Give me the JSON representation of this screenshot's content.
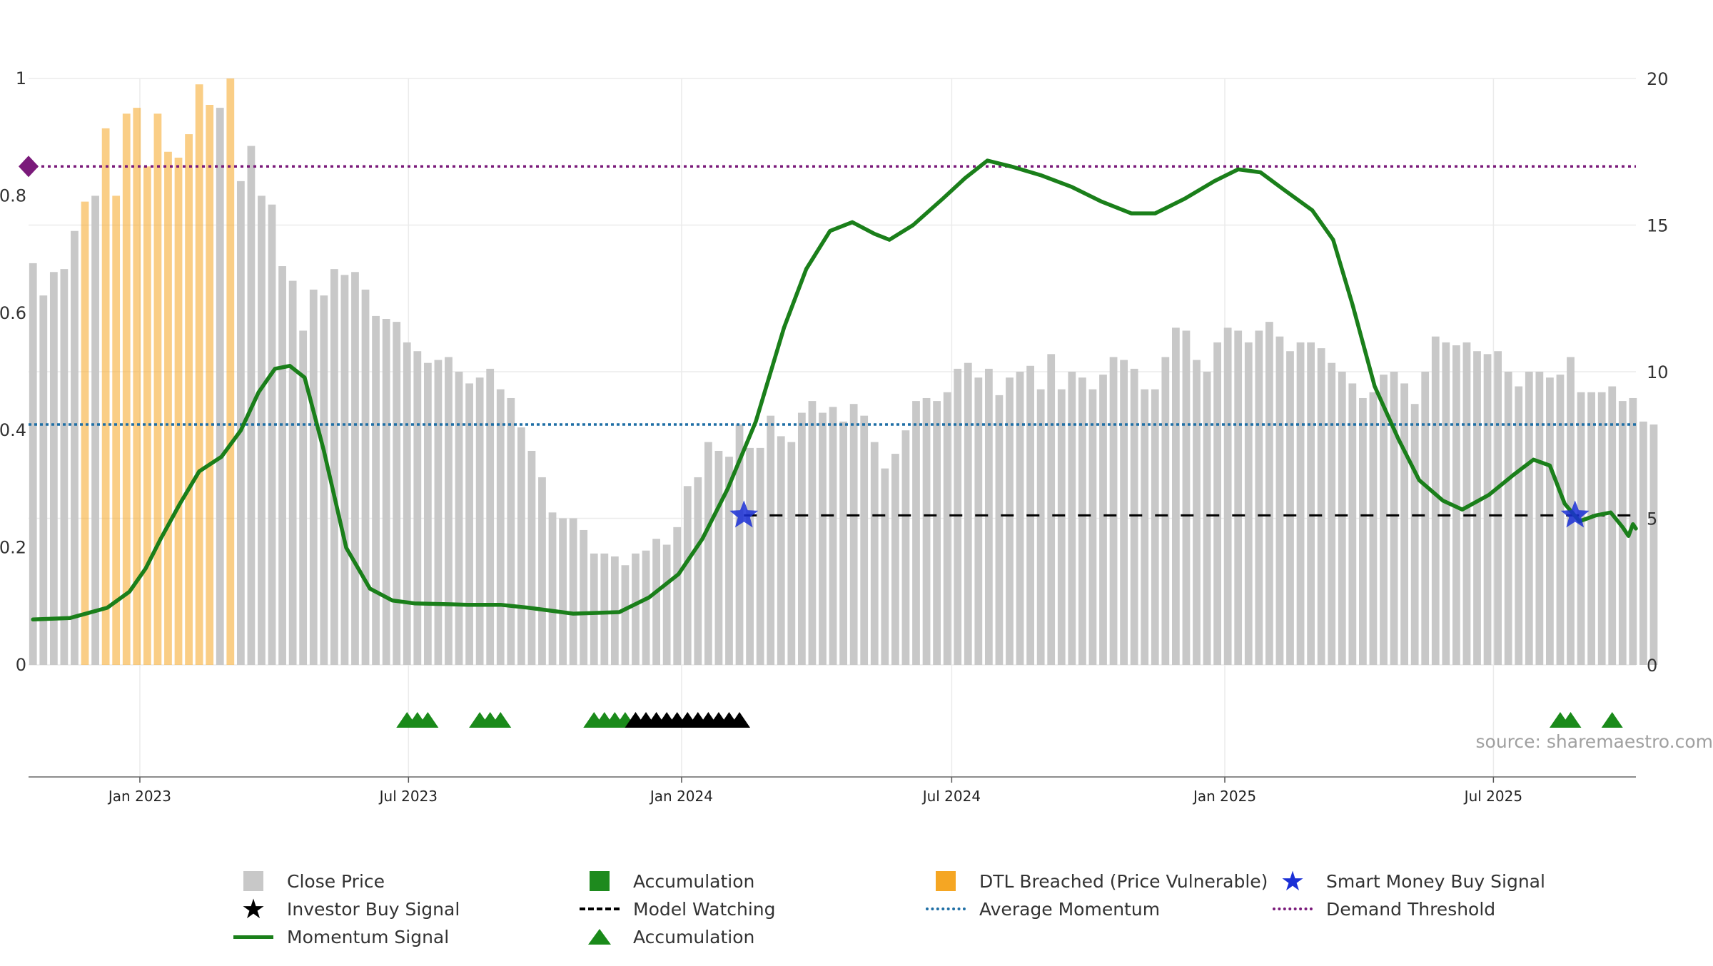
{
  "chart_data": {
    "type": "bar",
    "left_axis": {
      "ticks": [
        "0",
        "0.2",
        "0.4",
        "0.6",
        "0.8",
        "1"
      ],
      "ylim": [
        0,
        1
      ]
    },
    "right_axis": {
      "ticks": [
        "0",
        "5",
        "10",
        "15",
        "20"
      ],
      "ylim": [
        0,
        20
      ]
    },
    "x_ticks": [
      "Jan 2023",
      "Jul 2023",
      "Jan 2024",
      "Jul 2024",
      "Jan 2025",
      "Jul 2025"
    ],
    "x_tick_dates": [
      "2023-01-01",
      "2023-07-01",
      "2024-01-01",
      "2024-07-01",
      "2025-01-01",
      "2025-07-01"
    ],
    "x_range": [
      "2022-10-18",
      "2025-10-05"
    ],
    "source_text": "source: sharemaestro.com",
    "series": [
      {
        "name": "Close Price",
        "color": "#c8c8c8",
        "start_date": "2022-10-21",
        "interval_days": 7,
        "values": [
          13.7,
          12.6,
          13.4,
          13.5,
          14.8,
          15.8,
          16.0,
          18.3,
          16.0,
          18.8,
          19.0,
          17.0,
          18.8,
          17.5,
          17.3,
          18.1,
          19.8,
          19.1,
          19.0,
          20.0,
          16.5,
          17.7,
          16.0,
          15.7,
          13.6,
          13.1,
          11.4,
          12.8,
          12.6,
          13.5,
          13.3,
          13.4,
          12.8,
          11.9,
          11.8,
          11.7,
          11.0,
          10.7,
          10.3,
          10.4,
          10.5,
          10.0,
          9.6,
          9.8,
          10.1,
          9.4,
          9.1,
          8.1,
          7.3,
          6.4,
          5.2,
          5.0,
          5.0,
          4.6,
          3.8,
          3.8,
          3.7,
          3.4,
          3.8,
          3.9,
          4.3,
          4.1,
          4.7,
          6.1,
          6.4,
          7.6,
          7.3,
          7.1,
          8.2,
          7.4,
          7.4,
          8.5,
          7.8,
          7.6,
          8.6,
          9.0,
          8.6,
          8.8,
          8.3,
          8.9,
          8.5,
          7.6,
          6.7,
          7.2,
          8.0,
          9.0,
          9.1,
          9.0,
          9.3,
          10.1,
          10.3,
          9.8,
          10.1,
          9.2,
          9.8,
          10.0,
          10.2,
          9.4,
          10.6,
          9.4,
          10.0,
          9.8,
          9.4,
          9.9,
          10.5,
          10.4,
          10.1,
          9.4,
          9.4,
          10.5,
          11.5,
          11.4,
          10.4,
          10.0,
          11.0,
          11.5,
          11.4,
          11.0,
          11.4,
          11.7,
          11.2,
          10.7,
          11.0,
          11.0,
          10.8,
          10.3,
          10.0,
          9.6,
          9.1,
          9.3,
          9.9,
          10.0,
          9.6,
          8.9,
          10.0,
          11.2,
          11.0,
          10.9,
          11.0,
          10.7,
          10.6,
          10.7,
          10.0,
          9.5,
          10.0,
          10.0,
          9.8,
          9.9,
          10.5,
          9.3,
          9.3,
          9.3,
          9.5,
          9.0,
          9.1,
          8.3,
          8.2
        ]
      },
      {
        "name": "Momentum Signal",
        "color": "#1a7f1a",
        "points": [
          [
            "2022-10-21",
            1.55
          ],
          [
            "2022-11-15",
            1.6
          ],
          [
            "2022-12-10",
            1.95
          ],
          [
            "2022-12-25",
            2.5
          ],
          [
            "2023-01-05",
            3.3
          ],
          [
            "2023-01-15",
            4.3
          ],
          [
            "2023-01-28",
            5.5
          ],
          [
            "2023-02-10",
            6.6
          ],
          [
            "2023-02-25",
            7.1
          ],
          [
            "2023-03-10",
            8.0
          ],
          [
            "2023-03-22",
            9.3
          ],
          [
            "2023-04-02",
            10.1
          ],
          [
            "2023-04-12",
            10.2
          ],
          [
            "2023-04-22",
            9.8
          ],
          [
            "2023-05-05",
            7.3
          ],
          [
            "2023-05-20",
            4.0
          ],
          [
            "2023-06-05",
            2.6
          ],
          [
            "2023-06-20",
            2.2
          ],
          [
            "2023-07-05",
            2.1
          ],
          [
            "2023-08-10",
            2.05
          ],
          [
            "2023-09-01",
            2.05
          ],
          [
            "2023-09-20",
            1.95
          ],
          [
            "2023-10-20",
            1.75
          ],
          [
            "2023-11-20",
            1.8
          ],
          [
            "2023-12-10",
            2.3
          ],
          [
            "2023-12-30",
            3.1
          ],
          [
            "2024-01-15",
            4.3
          ],
          [
            "2024-02-01",
            6.0
          ],
          [
            "2024-02-20",
            8.3
          ],
          [
            "2024-03-10",
            11.5
          ],
          [
            "2024-03-25",
            13.5
          ],
          [
            "2024-04-10",
            14.8
          ],
          [
            "2024-04-25",
            15.1
          ],
          [
            "2024-05-10",
            14.7
          ],
          [
            "2024-05-20",
            14.5
          ],
          [
            "2024-06-05",
            15.0
          ],
          [
            "2024-06-25",
            15.9
          ],
          [
            "2024-07-10",
            16.6
          ],
          [
            "2024-07-25",
            17.2
          ],
          [
            "2024-08-10",
            17.0
          ],
          [
            "2024-08-30",
            16.7
          ],
          [
            "2024-09-20",
            16.3
          ],
          [
            "2024-10-10",
            15.8
          ],
          [
            "2024-10-30",
            15.4
          ],
          [
            "2024-11-15",
            15.4
          ],
          [
            "2024-12-05",
            15.9
          ],
          [
            "2024-12-25",
            16.5
          ],
          [
            "2025-01-10",
            16.9
          ],
          [
            "2025-01-25",
            16.8
          ],
          [
            "2025-02-10",
            16.2
          ],
          [
            "2025-03-01",
            15.5
          ],
          [
            "2025-03-15",
            14.5
          ],
          [
            "2025-03-28",
            12.3
          ],
          [
            "2025-04-12",
            9.5
          ],
          [
            "2025-04-28",
            7.7
          ],
          [
            "2025-05-12",
            6.3
          ],
          [
            "2025-05-28",
            5.6
          ],
          [
            "2025-06-10",
            5.3
          ],
          [
            "2025-06-28",
            5.8
          ],
          [
            "2025-07-15",
            6.5
          ],
          [
            "2025-07-28",
            7.0
          ],
          [
            "2025-08-08",
            6.8
          ],
          [
            "2025-08-18",
            5.5
          ],
          [
            "2025-08-28",
            4.9
          ],
          [
            "2025-09-08",
            5.1
          ],
          [
            "2025-09-18",
            5.2
          ],
          [
            "2025-09-26",
            4.7
          ],
          [
            "2025-09-30",
            4.4
          ],
          [
            "2025-10-03",
            4.8
          ],
          [
            "2025-10-05",
            4.65
          ]
        ]
      },
      {
        "name": "Average Momentum",
        "color": "#1f6fa5",
        "value": 8.2
      },
      {
        "name": "Demand Threshold",
        "color": "#7a1a7a",
        "value": 17.0
      },
      {
        "name": "Model Watching",
        "color": "#000000",
        "value": 5.1,
        "start": "2024-02-12",
        "end": "2025-10-05"
      }
    ],
    "accumulation_bars": [
      "2023-07-01",
      "2023-07-08",
      "2023-07-15",
      "2023-08-19",
      "2023-08-26",
      "2023-09-02",
      "2023-11-04",
      "2023-11-11",
      "2023-11-18",
      "2023-11-25",
      "2023-12-02",
      "2023-12-09",
      "2023-12-16",
      "2023-12-23",
      "2023-12-30",
      "2024-01-06",
      "2024-01-13",
      "2024-01-20",
      "2024-01-27",
      "2024-02-03",
      "2024-02-10",
      "2025-08-16",
      "2025-08-23",
      "2025-09-20"
    ],
    "accumulation_bar_color": "#1e8a1e",
    "dtl_breached_bars": [
      "2022-11-25",
      "2022-12-09",
      "2022-12-16",
      "2022-12-23",
      "2022-12-30",
      "2023-01-06",
      "2023-01-13",
      "2023-01-20",
      "2023-01-27",
      "2023-02-03",
      "2023-02-10",
      "2023-02-17",
      "2023-03-03"
    ],
    "dtl_color": "#f5a623",
    "accumulation_triangles": [
      "2023-06-30",
      "2023-07-07",
      "2023-07-14",
      "2023-08-18",
      "2023-08-25",
      "2023-09-01",
      "2023-11-03",
      "2023-11-10",
      "2023-11-17",
      "2023-11-24",
      "2025-08-15",
      "2025-08-22",
      "2025-09-19"
    ],
    "investor_buy_signals": [
      "2023-12-01",
      "2023-12-08",
      "2023-12-15",
      "2023-12-22",
      "2023-12-29",
      "2024-01-05",
      "2024-01-12",
      "2024-01-19",
      "2024-01-26",
      "2024-02-02",
      "2024-02-09"
    ],
    "smart_money_buy_signals": [
      {
        "date": "2024-02-12",
        "value": 5.1
      },
      {
        "date": "2025-08-25",
        "value": 5.1
      }
    ],
    "smart_money_color": "#1a2fd6",
    "legend": [
      {
        "label": "Close Price",
        "symbol": "gray-square"
      },
      {
        "label": "Accumulation",
        "symbol": "green-square"
      },
      {
        "label": "DTL Breached (Price Vulnerable)",
        "symbol": "orange-square"
      },
      {
        "label": "Smart Money Buy Signal",
        "symbol": "blue-star"
      },
      {
        "label": "Investor Buy Signal",
        "symbol": "black-star"
      },
      {
        "label": "Model Watching",
        "symbol": "black-dash"
      },
      {
        "label": "Average Momentum",
        "symbol": "blue-dotted"
      },
      {
        "label": "Demand Threshold",
        "symbol": "purple-dotted"
      },
      {
        "label": "Momentum Signal",
        "symbol": "green-line"
      },
      {
        "label": "Accumulation",
        "symbol": "green-triangle"
      }
    ],
    "grid": true,
    "legend_position": "bottom"
  }
}
